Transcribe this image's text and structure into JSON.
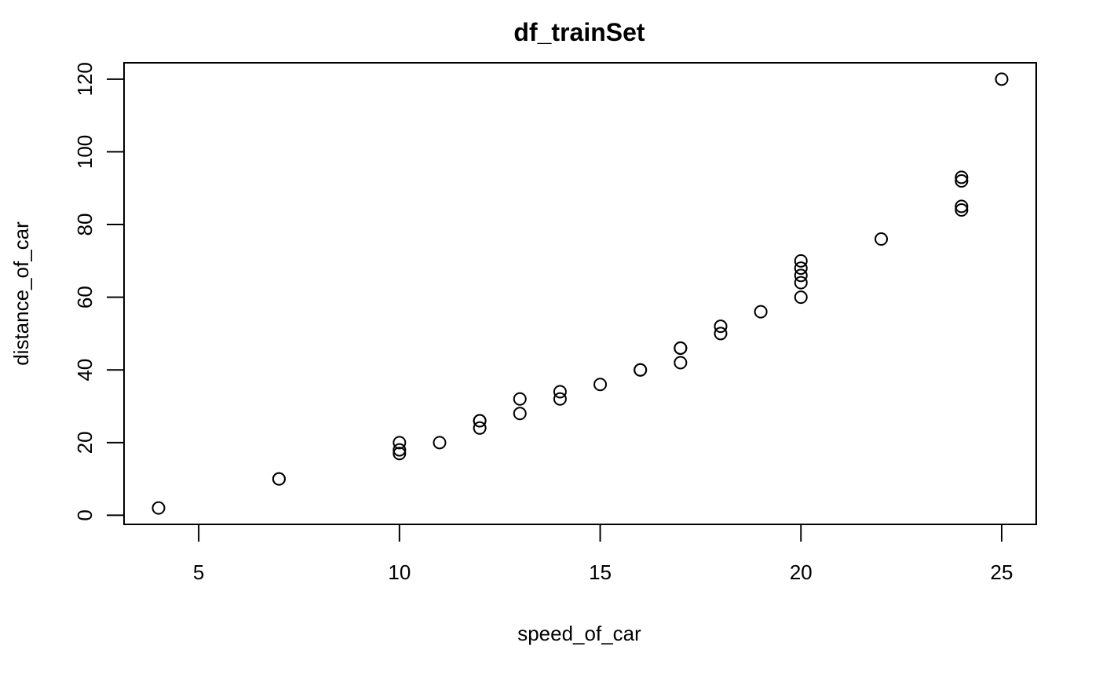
{
  "chart_data": {
    "type": "scatter",
    "title": "df_trainSet",
    "xlabel": "speed_of_car",
    "ylabel": "distance_of_car",
    "xlim": [
      3.14,
      25.86
    ],
    "ylim": [
      -2.5,
      124.5
    ],
    "x_ticks": [
      5,
      10,
      15,
      20,
      25
    ],
    "y_ticks": [
      0,
      20,
      40,
      60,
      80,
      100,
      120
    ],
    "grid": false,
    "legend": "none",
    "point_style": "open-circle",
    "colors": {
      "points": "#000000",
      "axes": "#000000",
      "background": "#ffffff"
    },
    "points": [
      {
        "x": 4,
        "y": 2
      },
      {
        "x": 7,
        "y": 10
      },
      {
        "x": 7,
        "y": 10
      },
      {
        "x": 10,
        "y": 17
      },
      {
        "x": 10,
        "y": 18
      },
      {
        "x": 10,
        "y": 20
      },
      {
        "x": 11,
        "y": 20
      },
      {
        "x": 12,
        "y": 24
      },
      {
        "x": 12,
        "y": 26
      },
      {
        "x": 12,
        "y": 26
      },
      {
        "x": 13,
        "y": 28
      },
      {
        "x": 13,
        "y": 32
      },
      {
        "x": 14,
        "y": 32
      },
      {
        "x": 14,
        "y": 34
      },
      {
        "x": 15,
        "y": 36
      },
      {
        "x": 16,
        "y": 40
      },
      {
        "x": 16,
        "y": 40
      },
      {
        "x": 17,
        "y": 42
      },
      {
        "x": 17,
        "y": 46
      },
      {
        "x": 17,
        "y": 46
      },
      {
        "x": 18,
        "y": 50
      },
      {
        "x": 18,
        "y": 52
      },
      {
        "x": 19,
        "y": 56
      },
      {
        "x": 20,
        "y": 60
      },
      {
        "x": 20,
        "y": 64
      },
      {
        "x": 20,
        "y": 66
      },
      {
        "x": 20,
        "y": 68
      },
      {
        "x": 20,
        "y": 70
      },
      {
        "x": 22,
        "y": 76
      },
      {
        "x": 24,
        "y": 84
      },
      {
        "x": 24,
        "y": 85
      },
      {
        "x": 24,
        "y": 92
      },
      {
        "x": 24,
        "y": 93
      },
      {
        "x": 25,
        "y": 120
      }
    ]
  }
}
